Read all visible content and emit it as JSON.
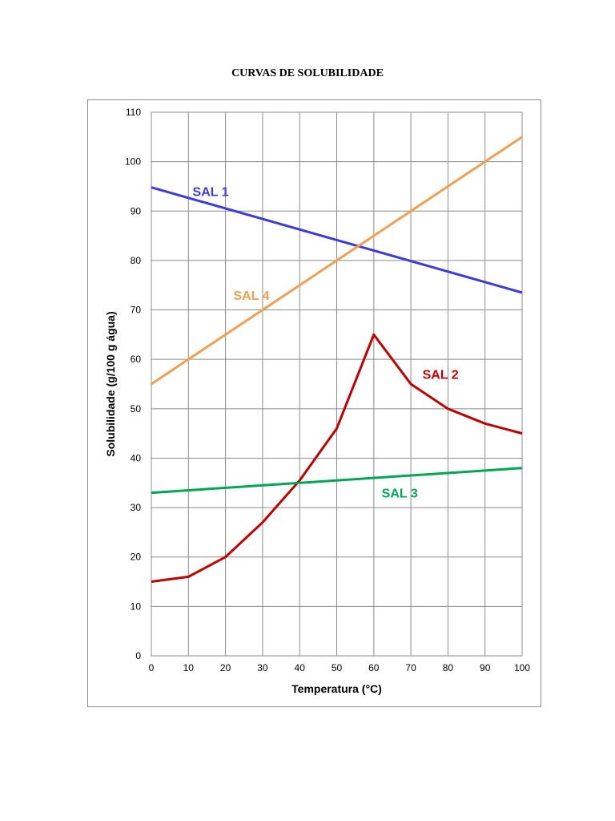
{
  "page": {
    "title": "CURVAS DE SOLUBILIDADE"
  },
  "chart_data": {
    "type": "line",
    "title": "CURVAS DE SOLUBILIDADE",
    "xlabel": "Temperatura (°C)",
    "ylabel": "Solubilidade (g/100 g água)",
    "xlim": [
      0,
      100
    ],
    "ylim": [
      0,
      110
    ],
    "x_ticks": [
      0,
      10,
      20,
      30,
      40,
      50,
      60,
      70,
      80,
      90,
      100
    ],
    "y_ticks": [
      0,
      10,
      20,
      30,
      40,
      50,
      60,
      70,
      80,
      90,
      100,
      110
    ],
    "grid": true,
    "series": [
      {
        "name": "SAL 1",
        "color": "#3b3bdc",
        "x": [
          0,
          100
        ],
        "y": [
          94.8,
          73.5
        ],
        "label_at": [
          16,
          94
        ]
      },
      {
        "name": "SAL 4",
        "color": "#f0a050",
        "x": [
          0,
          100
        ],
        "y": [
          55,
          105
        ],
        "label_at": [
          27,
          73
        ]
      },
      {
        "name": "SAL 2",
        "color": "#c00000",
        "x": [
          0,
          10,
          20,
          30,
          40,
          50,
          60,
          70,
          80,
          90,
          100
        ],
        "y": [
          15,
          16,
          20,
          27,
          35.5,
          46,
          65,
          55,
          50,
          47,
          45
        ],
        "label_at": [
          78,
          57
        ]
      },
      {
        "name": "SAL 3",
        "color": "#00a651",
        "x": [
          0,
          100
        ],
        "y": [
          33,
          38
        ],
        "label_at": [
          67,
          33
        ]
      }
    ]
  }
}
